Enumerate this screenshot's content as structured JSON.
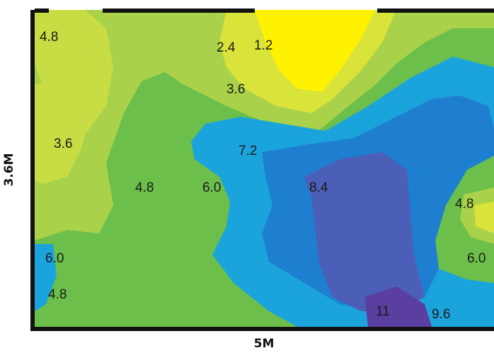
{
  "dimensions": {
    "width_label": "5M",
    "height_label": "3.6M"
  },
  "contour_labels": [
    {
      "id": "tl-4-8",
      "text": "4.8"
    },
    {
      "id": "top-2-4",
      "text": "2.4"
    },
    {
      "id": "top-1-2",
      "text": "1.2"
    },
    {
      "id": "top-3-6",
      "text": "3.6"
    },
    {
      "id": "left-3-6",
      "text": "3.6"
    },
    {
      "id": "mid-7-2",
      "text": "7.2"
    },
    {
      "id": "mid-4-8",
      "text": "4.8"
    },
    {
      "id": "mid-6-0",
      "text": "6.0"
    },
    {
      "id": "mid-8-4",
      "text": "8.4"
    },
    {
      "id": "right-4-8",
      "text": "4.8"
    },
    {
      "id": "left-6-0",
      "text": "6.0"
    },
    {
      "id": "right-6-0",
      "text": "6.0"
    },
    {
      "id": "bl-4-8",
      "text": "4.8"
    },
    {
      "id": "bot-11",
      "text": "11"
    },
    {
      "id": "bot-9-6",
      "text": "9.6"
    }
  ],
  "colors": {
    "yellow": "#fff200",
    "yellow_green": "#d9e33a",
    "light_green": "#a9d24a",
    "green": "#6cbf4a",
    "cyan_blue": "#1ba4dc",
    "blue": "#1e7fd0",
    "indigo": "#4b5fb8",
    "purple": "#5b3fa0",
    "frame": "#111111"
  }
}
